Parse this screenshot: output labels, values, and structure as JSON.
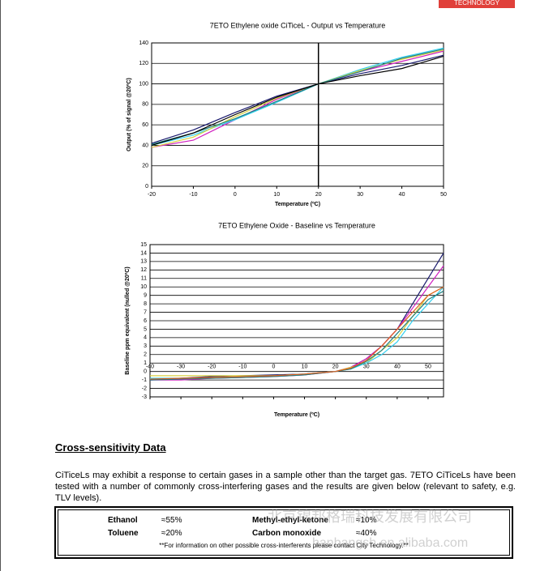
{
  "header": {
    "tag": "TECHNOLOGY"
  },
  "chart_data": [
    {
      "type": "line",
      "title": "7ETO Ethylene oxide CiTiceL - Output vs Temperature",
      "x_label": "Temperature (ºC)",
      "y_label": "Output (% of signal @20ºC)",
      "x": [
        -20,
        -10,
        0,
        10,
        20,
        30,
        40,
        50
      ],
      "series": [
        {
          "color": "#1a1a6e",
          "values": [
            42,
            55,
            72,
            88,
            100,
            110,
            118,
            128
          ]
        },
        {
          "color": "#d020c0",
          "values": [
            38,
            45,
            65,
            85,
            100,
            112,
            122,
            132
          ]
        },
        {
          "color": "#30d0f0",
          "values": [
            40,
            50,
            65,
            82,
            100,
            114,
            126,
            135
          ]
        },
        {
          "color": "#d8d040",
          "values": [
            38,
            48,
            68,
            86,
            100,
            113,
            124,
            133
          ]
        },
        {
          "color": "#208080",
          "values": [
            41,
            52,
            66,
            83,
            100,
            112,
            125,
            134
          ]
        },
        {
          "color": "#000000",
          "values": [
            40,
            52,
            70,
            87,
            100,
            108,
            115,
            127
          ]
        }
      ],
      "xlim": [
        -20,
        50
      ],
      "xticks": [
        -20,
        -10,
        0,
        10,
        20,
        30,
        40,
        50
      ],
      "ylim": [
        0,
        140
      ],
      "yticks": [
        0,
        20,
        40,
        60,
        80,
        100,
        120,
        140
      ],
      "grid": "y",
      "vline": 20
    },
    {
      "type": "line",
      "title": "7ETO Ethylene Oxide - Baseline vs Temperature",
      "x_label": "Temperature (ºC)",
      "y_label": "Baseline ppm equivalent (nulled @20ºC)",
      "x": [
        -40,
        -30,
        -20,
        -10,
        0,
        10,
        20,
        25,
        30,
        35,
        40,
        45,
        50,
        55
      ],
      "series": [
        {
          "color": "#1a1a6e",
          "values": [
            -1,
            -0.8,
            -0.6,
            -0.5,
            -0.4,
            -0.3,
            0,
            0.5,
            1.5,
            3,
            5,
            8,
            11,
            14
          ]
        },
        {
          "color": "#d020c0",
          "values": [
            -1,
            -1,
            -0.8,
            -0.7,
            -0.6,
            -0.4,
            0,
            0.5,
            1.5,
            3,
            5,
            7.5,
            10,
            12.5
          ]
        },
        {
          "color": "#d8d040",
          "values": [
            -0.5,
            -0.5,
            -0.5,
            -0.5,
            -0.5,
            -0.3,
            0,
            0.5,
            1,
            2.5,
            4,
            6.5,
            9,
            10
          ]
        },
        {
          "color": "#30d0f0",
          "values": [
            -0.8,
            -0.8,
            -0.7,
            -0.6,
            -0.5,
            -0.3,
            0,
            0.3,
            1,
            2,
            3.5,
            6,
            8,
            10
          ]
        },
        {
          "color": "#208080",
          "values": [
            -1,
            -0.9,
            -0.8,
            -0.7,
            -0.6,
            -0.4,
            0,
            0.3,
            1.2,
            2.5,
            4.5,
            6.5,
            8.5,
            9.5
          ]
        },
        {
          "color": "#e06020",
          "values": [
            -0.9,
            -0.8,
            -0.7,
            -0.6,
            -0.5,
            -0.3,
            0,
            0.4,
            1.3,
            3,
            5,
            7,
            9,
            10
          ]
        }
      ],
      "xlim": [
        -40,
        55
      ],
      "xticks": [
        -40,
        -30,
        -20,
        -10,
        0,
        10,
        20,
        30,
        40,
        50
      ],
      "ylim": [
        -3,
        15
      ],
      "yticks": [
        -3,
        -2,
        -1,
        0,
        1,
        2,
        3,
        4,
        5,
        6,
        7,
        8,
        9,
        10,
        11,
        12,
        13,
        14,
        15
      ],
      "grid": "y"
    }
  ],
  "section": {
    "title": "Cross-sensitivity Data",
    "paragraph": "CiTiceLs may exhibit a response to certain gases in a sample other than the target gas.  7ETO CiTiceLs have been tested with a number of commonly cross-interfering gases and the results are given below (relevant to safety, e.g. TLV levels)."
  },
  "table": {
    "rows": [
      [
        "Ethanol",
        "≈55%",
        "Methyl-ethyl-ketone",
        "≈10%"
      ],
      [
        "Toluene",
        "≈20%",
        "Carbon monoxide",
        "≈40%"
      ]
    ],
    "footnote": "**For information on other possible cross-interferents please contact City Technology.**"
  },
  "watermark": {
    "company": "北京锦邦格瑞科技发展有限公司",
    "url": "hanbangsh.en.alibaba.com"
  }
}
